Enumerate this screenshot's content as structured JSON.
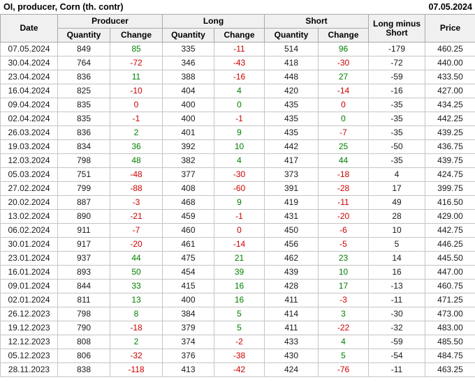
{
  "title": "OI, producer, Corn (th. contr)",
  "report_date": "07.05.2024",
  "colors": {
    "positive": "#008000",
    "negative": "#cc0000",
    "header_bg": "#f0f0f0",
    "header_border": "#a9a9a9",
    "body_border": "#c5c5c5"
  },
  "headers": {
    "date": "Date",
    "producer": "Producer",
    "long": "Long",
    "short": "Short",
    "quantity": "Quantity",
    "change": "Change",
    "long_minus_short": "Long minus Short",
    "price": "Price"
  },
  "chart_data": {
    "type": "table",
    "title": "OI, producer, Corn (th. contr)",
    "columns": [
      "Date",
      "Producer Quantity",
      "Producer Change",
      "Long Quantity",
      "Long Change",
      "Short Quantity",
      "Short Change",
      "Long minus Short",
      "Price"
    ],
    "rows": [
      {
        "date": "07.05.2024",
        "producer_qty": "849",
        "producer_chg": "85",
        "producer_chg_color": "g",
        "long_qty": "335",
        "long_chg": "-11",
        "long_chg_color": "r",
        "short_qty": "514",
        "short_chg": "96",
        "short_chg_color": "g",
        "long_minus_short": "-179",
        "price": "460.25"
      },
      {
        "date": "30.04.2024",
        "producer_qty": "764",
        "producer_chg": "-72",
        "producer_chg_color": "r",
        "long_qty": "346",
        "long_chg": "-43",
        "long_chg_color": "r",
        "short_qty": "418",
        "short_chg": "-30",
        "short_chg_color": "r",
        "long_minus_short": "-72",
        "price": "440.00"
      },
      {
        "date": "23.04.2024",
        "producer_qty": "836",
        "producer_chg": "11",
        "producer_chg_color": "g",
        "long_qty": "388",
        "long_chg": "-16",
        "long_chg_color": "r",
        "short_qty": "448",
        "short_chg": "27",
        "short_chg_color": "g",
        "long_minus_short": "-59",
        "price": "433.50"
      },
      {
        "date": "16.04.2024",
        "producer_qty": "825",
        "producer_chg": "-10",
        "producer_chg_color": "r",
        "long_qty": "404",
        "long_chg": "4",
        "long_chg_color": "g",
        "short_qty": "420",
        "short_chg": "-14",
        "short_chg_color": "r",
        "long_minus_short": "-16",
        "price": "427.00"
      },
      {
        "date": "09.04.2024",
        "producer_qty": "835",
        "producer_chg": "0",
        "producer_chg_color": "r",
        "long_qty": "400",
        "long_chg": "0",
        "long_chg_color": "g",
        "short_qty": "435",
        "short_chg": "0",
        "short_chg_color": "r",
        "long_minus_short": "-35",
        "price": "434.25"
      },
      {
        "date": "02.04.2024",
        "producer_qty": "835",
        "producer_chg": "-1",
        "producer_chg_color": "r",
        "long_qty": "400",
        "long_chg": "-1",
        "long_chg_color": "r",
        "short_qty": "435",
        "short_chg": "0",
        "short_chg_color": "g",
        "long_minus_short": "-35",
        "price": "442.25"
      },
      {
        "date": "26.03.2024",
        "producer_qty": "836",
        "producer_chg": "2",
        "producer_chg_color": "g",
        "long_qty": "401",
        "long_chg": "9",
        "long_chg_color": "g",
        "short_qty": "435",
        "short_chg": "-7",
        "short_chg_color": "r",
        "long_minus_short": "-35",
        "price": "439.25"
      },
      {
        "date": "19.03.2024",
        "producer_qty": "834",
        "producer_chg": "36",
        "producer_chg_color": "g",
        "long_qty": "392",
        "long_chg": "10",
        "long_chg_color": "g",
        "short_qty": "442",
        "short_chg": "25",
        "short_chg_color": "g",
        "long_minus_short": "-50",
        "price": "436.75"
      },
      {
        "date": "12.03.2024",
        "producer_qty": "798",
        "producer_chg": "48",
        "producer_chg_color": "g",
        "long_qty": "382",
        "long_chg": "4",
        "long_chg_color": "g",
        "short_qty": "417",
        "short_chg": "44",
        "short_chg_color": "g",
        "long_minus_short": "-35",
        "price": "439.75"
      },
      {
        "date": "05.03.2024",
        "producer_qty": "751",
        "producer_chg": "-48",
        "producer_chg_color": "r",
        "long_qty": "377",
        "long_chg": "-30",
        "long_chg_color": "r",
        "short_qty": "373",
        "short_chg": "-18",
        "short_chg_color": "r",
        "long_minus_short": "4",
        "price": "424.75"
      },
      {
        "date": "27.02.2024",
        "producer_qty": "799",
        "producer_chg": "-88",
        "producer_chg_color": "r",
        "long_qty": "408",
        "long_chg": "-60",
        "long_chg_color": "r",
        "short_qty": "391",
        "short_chg": "-28",
        "short_chg_color": "r",
        "long_minus_short": "17",
        "price": "399.75"
      },
      {
        "date": "20.02.2024",
        "producer_qty": "887",
        "producer_chg": "-3",
        "producer_chg_color": "r",
        "long_qty": "468",
        "long_chg": "9",
        "long_chg_color": "g",
        "short_qty": "419",
        "short_chg": "-11",
        "short_chg_color": "r",
        "long_minus_short": "49",
        "price": "416.50"
      },
      {
        "date": "13.02.2024",
        "producer_qty": "890",
        "producer_chg": "-21",
        "producer_chg_color": "r",
        "long_qty": "459",
        "long_chg": "-1",
        "long_chg_color": "r",
        "short_qty": "431",
        "short_chg": "-20",
        "short_chg_color": "r",
        "long_minus_short": "28",
        "price": "429.00"
      },
      {
        "date": "06.02.2024",
        "producer_qty": "911",
        "producer_chg": "-7",
        "producer_chg_color": "r",
        "long_qty": "460",
        "long_chg": "0",
        "long_chg_color": "r",
        "short_qty": "450",
        "short_chg": "-6",
        "short_chg_color": "r",
        "long_minus_short": "10",
        "price": "442.75"
      },
      {
        "date": "30.01.2024",
        "producer_qty": "917",
        "producer_chg": "-20",
        "producer_chg_color": "r",
        "long_qty": "461",
        "long_chg": "-14",
        "long_chg_color": "r",
        "short_qty": "456",
        "short_chg": "-5",
        "short_chg_color": "r",
        "long_minus_short": "5",
        "price": "446.25"
      },
      {
        "date": "23.01.2024",
        "producer_qty": "937",
        "producer_chg": "44",
        "producer_chg_color": "g",
        "long_qty": "475",
        "long_chg": "21",
        "long_chg_color": "g",
        "short_qty": "462",
        "short_chg": "23",
        "short_chg_color": "g",
        "long_minus_short": "14",
        "price": "445.50"
      },
      {
        "date": "16.01.2024",
        "producer_qty": "893",
        "producer_chg": "50",
        "producer_chg_color": "g",
        "long_qty": "454",
        "long_chg": "39",
        "long_chg_color": "g",
        "short_qty": "439",
        "short_chg": "10",
        "short_chg_color": "g",
        "long_minus_short": "16",
        "price": "447.00"
      },
      {
        "date": "09.01.2024",
        "producer_qty": "844",
        "producer_chg": "33",
        "producer_chg_color": "g",
        "long_qty": "415",
        "long_chg": "16",
        "long_chg_color": "g",
        "short_qty": "428",
        "short_chg": "17",
        "short_chg_color": "g",
        "long_minus_short": "-13",
        "price": "460.75"
      },
      {
        "date": "02.01.2024",
        "producer_qty": "811",
        "producer_chg": "13",
        "producer_chg_color": "g",
        "long_qty": "400",
        "long_chg": "16",
        "long_chg_color": "g",
        "short_qty": "411",
        "short_chg": "-3",
        "short_chg_color": "r",
        "long_minus_short": "-11",
        "price": "471.25"
      },
      {
        "date": "26.12.2023",
        "producer_qty": "798",
        "producer_chg": "8",
        "producer_chg_color": "g",
        "long_qty": "384",
        "long_chg": "5",
        "long_chg_color": "g",
        "short_qty": "414",
        "short_chg": "3",
        "short_chg_color": "g",
        "long_minus_short": "-30",
        "price": "473.00"
      },
      {
        "date": "19.12.2023",
        "producer_qty": "790",
        "producer_chg": "-18",
        "producer_chg_color": "r",
        "long_qty": "379",
        "long_chg": "5",
        "long_chg_color": "g",
        "short_qty": "411",
        "short_chg": "-22",
        "short_chg_color": "r",
        "long_minus_short": "-32",
        "price": "483.00"
      },
      {
        "date": "12.12.2023",
        "producer_qty": "808",
        "producer_chg": "2",
        "producer_chg_color": "g",
        "long_qty": "374",
        "long_chg": "-2",
        "long_chg_color": "r",
        "short_qty": "433",
        "short_chg": "4",
        "short_chg_color": "g",
        "long_minus_short": "-59",
        "price": "485.50"
      },
      {
        "date": "05.12.2023",
        "producer_qty": "806",
        "producer_chg": "-32",
        "producer_chg_color": "r",
        "long_qty": "376",
        "long_chg": "-38",
        "long_chg_color": "r",
        "short_qty": "430",
        "short_chg": "5",
        "short_chg_color": "g",
        "long_minus_short": "-54",
        "price": "484.75"
      },
      {
        "date": "28.11.2023",
        "producer_qty": "838",
        "producer_chg": "-118",
        "producer_chg_color": "r",
        "long_qty": "413",
        "long_chg": "-42",
        "long_chg_color": "r",
        "short_qty": "424",
        "short_chg": "-76",
        "short_chg_color": "r",
        "long_minus_short": "-11",
        "price": "463.25"
      }
    ]
  }
}
